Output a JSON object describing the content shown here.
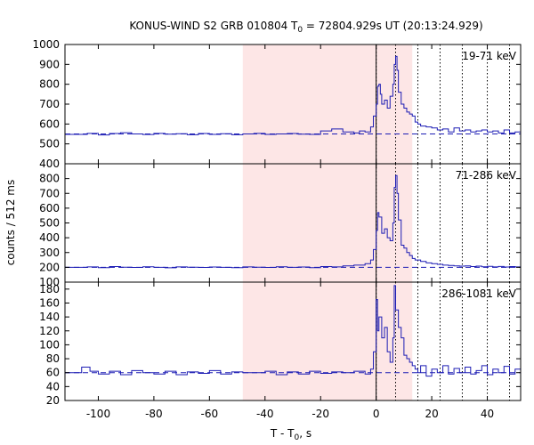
{
  "chart_data": {
    "type": "line",
    "style": "step",
    "title": {
      "prefix": "KONUS-WIND S2 GRB 010804 T",
      "subscript": "0",
      "suffix": " = 72804.929s UT (20:13:24.929)"
    },
    "xlabel": {
      "prefix": "T - T",
      "subscript": "0",
      "suffix": ", s"
    },
    "ylabel": "counts / 512 ms",
    "xlim": [
      -112,
      52
    ],
    "xticks": [
      -100,
      -80,
      -60,
      -40,
      -20,
      0,
      20,
      40
    ],
    "shaded_region": [
      -48,
      13
    ],
    "solid_vline": 0,
    "dotted_vlines": [
      0,
      7,
      15,
      23,
      31,
      40,
      48
    ],
    "colors": {
      "series": "#1c1cb4",
      "shade": "#fde6e6",
      "axis": "#000000",
      "guide": "#000000"
    },
    "panels": [
      {
        "band": "19-71 keV",
        "ylim": [
          400,
          1000
        ],
        "yticks": [
          400,
          500,
          600,
          700,
          800,
          900,
          1000
        ],
        "background": 550,
        "series": [
          [
            -112,
            548
          ],
          [
            -104,
            553
          ],
          [
            -100,
            545
          ],
          [
            -96,
            552
          ],
          [
            -92,
            556
          ],
          [
            -88,
            550
          ],
          [
            -84,
            547
          ],
          [
            -80,
            553
          ],
          [
            -76,
            549
          ],
          [
            -72,
            551
          ],
          [
            -68,
            546
          ],
          [
            -64,
            552
          ],
          [
            -60,
            548
          ],
          [
            -56,
            551
          ],
          [
            -52,
            546
          ],
          [
            -48,
            550
          ],
          [
            -44,
            553
          ],
          [
            -40,
            548
          ],
          [
            -36,
            550
          ],
          [
            -32,
            552
          ],
          [
            -28,
            549
          ],
          [
            -24,
            548
          ],
          [
            -20,
            565
          ],
          [
            -16,
            575
          ],
          [
            -12,
            560
          ],
          [
            -8,
            555
          ],
          [
            -6,
            565
          ],
          [
            -4,
            560
          ],
          [
            -2,
            585
          ],
          [
            -1,
            640
          ],
          [
            0,
            700
          ],
          [
            0.5,
            790
          ],
          [
            1,
            800
          ],
          [
            1.5,
            750
          ],
          [
            2,
            700
          ],
          [
            3,
            720
          ],
          [
            4,
            680
          ],
          [
            5,
            740
          ],
          [
            6,
            800
          ],
          [
            6.5,
            900
          ],
          [
            7,
            940
          ],
          [
            7.5,
            870
          ],
          [
            8,
            760
          ],
          [
            9,
            700
          ],
          [
            10,
            680
          ],
          [
            11,
            660
          ],
          [
            12,
            650
          ],
          [
            13,
            640
          ],
          [
            14,
            610
          ],
          [
            15,
            600
          ],
          [
            16,
            590
          ],
          [
            18,
            585
          ],
          [
            20,
            580
          ],
          [
            22,
            570
          ],
          [
            24,
            575
          ],
          [
            26,
            560
          ],
          [
            28,
            580
          ],
          [
            30,
            565
          ],
          [
            32,
            570
          ],
          [
            34,
            560
          ],
          [
            36,
            565
          ],
          [
            38,
            570
          ],
          [
            40,
            560
          ],
          [
            42,
            565
          ],
          [
            44,
            555
          ],
          [
            46,
            570
          ],
          [
            48,
            555
          ],
          [
            50,
            560
          ],
          [
            52,
            560
          ]
        ]
      },
      {
        "band": "71-286 keV",
        "ylim": [
          100,
          900
        ],
        "yticks": [
          100,
          200,
          300,
          400,
          500,
          600,
          700,
          800
        ],
        "background": 200,
        "series": [
          [
            -112,
            200
          ],
          [
            -104,
            203
          ],
          [
            -100,
            198
          ],
          [
            -96,
            205
          ],
          [
            -92,
            201
          ],
          [
            -88,
            199
          ],
          [
            -84,
            204
          ],
          [
            -80,
            200
          ],
          [
            -76,
            197
          ],
          [
            -72,
            203
          ],
          [
            -68,
            201
          ],
          [
            -64,
            199
          ],
          [
            -60,
            202
          ],
          [
            -56,
            200
          ],
          [
            -52,
            198
          ],
          [
            -48,
            203
          ],
          [
            -44,
            201
          ],
          [
            -40,
            199
          ],
          [
            -36,
            204
          ],
          [
            -32,
            200
          ],
          [
            -28,
            202
          ],
          [
            -24,
            198
          ],
          [
            -20,
            205
          ],
          [
            -16,
            203
          ],
          [
            -12,
            210
          ],
          [
            -8,
            215
          ],
          [
            -4,
            225
          ],
          [
            -2,
            250
          ],
          [
            -1,
            320
          ],
          [
            0,
            450
          ],
          [
            0.5,
            570
          ],
          [
            1,
            540
          ],
          [
            2,
            430
          ],
          [
            3,
            460
          ],
          [
            4,
            400
          ],
          [
            5,
            380
          ],
          [
            6,
            500
          ],
          [
            6.5,
            740
          ],
          [
            7,
            820
          ],
          [
            7.5,
            700
          ],
          [
            8,
            520
          ],
          [
            9,
            350
          ],
          [
            10,
            330
          ],
          [
            11,
            300
          ],
          [
            12,
            280
          ],
          [
            13,
            260
          ],
          [
            14,
            250
          ],
          [
            16,
            240
          ],
          [
            18,
            230
          ],
          [
            20,
            225
          ],
          [
            22,
            220
          ],
          [
            24,
            215
          ],
          [
            26,
            213
          ],
          [
            28,
            210
          ],
          [
            30,
            208
          ],
          [
            32,
            210
          ],
          [
            34,
            205
          ],
          [
            36,
            208
          ],
          [
            38,
            204
          ],
          [
            40,
            207
          ],
          [
            42,
            203
          ],
          [
            44,
            206
          ],
          [
            46,
            202
          ],
          [
            48,
            205
          ],
          [
            50,
            203
          ],
          [
            52,
            203
          ]
        ]
      },
      {
        "band": "286-1081 keV",
        "ylim": [
          20,
          190
        ],
        "yticks": [
          20,
          40,
          60,
          80,
          100,
          120,
          140,
          160,
          180
        ],
        "background": 60,
        "series": [
          [
            -112,
            60
          ],
          [
            -106,
            68
          ],
          [
            -103,
            62
          ],
          [
            -100,
            58
          ],
          [
            -96,
            62
          ],
          [
            -92,
            57
          ],
          [
            -88,
            63
          ],
          [
            -84,
            60
          ],
          [
            -80,
            58
          ],
          [
            -76,
            62
          ],
          [
            -72,
            57
          ],
          [
            -68,
            61
          ],
          [
            -64,
            59
          ],
          [
            -60,
            63
          ],
          [
            -56,
            58
          ],
          [
            -52,
            61
          ],
          [
            -48,
            60
          ],
          [
            -44,
            60
          ],
          [
            -40,
            62
          ],
          [
            -36,
            57
          ],
          [
            -32,
            61
          ],
          [
            -28,
            58
          ],
          [
            -24,
            62
          ],
          [
            -20,
            59
          ],
          [
            -16,
            61
          ],
          [
            -12,
            60
          ],
          [
            -8,
            62
          ],
          [
            -4,
            58
          ],
          [
            -2,
            65
          ],
          [
            -1,
            90
          ],
          [
            0,
            165
          ],
          [
            0.5,
            120
          ],
          [
            1,
            140
          ],
          [
            2,
            110
          ],
          [
            3,
            125
          ],
          [
            4,
            90
          ],
          [
            5,
            75
          ],
          [
            6,
            110
          ],
          [
            6.5,
            185
          ],
          [
            7,
            150
          ],
          [
            8,
            125
          ],
          [
            9,
            110
          ],
          [
            10,
            85
          ],
          [
            11,
            80
          ],
          [
            12,
            75
          ],
          [
            13,
            70
          ],
          [
            14,
            65
          ],
          [
            15,
            60
          ],
          [
            16,
            70
          ],
          [
            18,
            55
          ],
          [
            20,
            65
          ],
          [
            22,
            60
          ],
          [
            24,
            70
          ],
          [
            26,
            58
          ],
          [
            28,
            66
          ],
          [
            30,
            60
          ],
          [
            32,
            68
          ],
          [
            34,
            58
          ],
          [
            36,
            63
          ],
          [
            38,
            70
          ],
          [
            40,
            57
          ],
          [
            42,
            65
          ],
          [
            44,
            60
          ],
          [
            46,
            69
          ],
          [
            48,
            58
          ],
          [
            50,
            65
          ],
          [
            52,
            65
          ]
        ]
      }
    ]
  }
}
